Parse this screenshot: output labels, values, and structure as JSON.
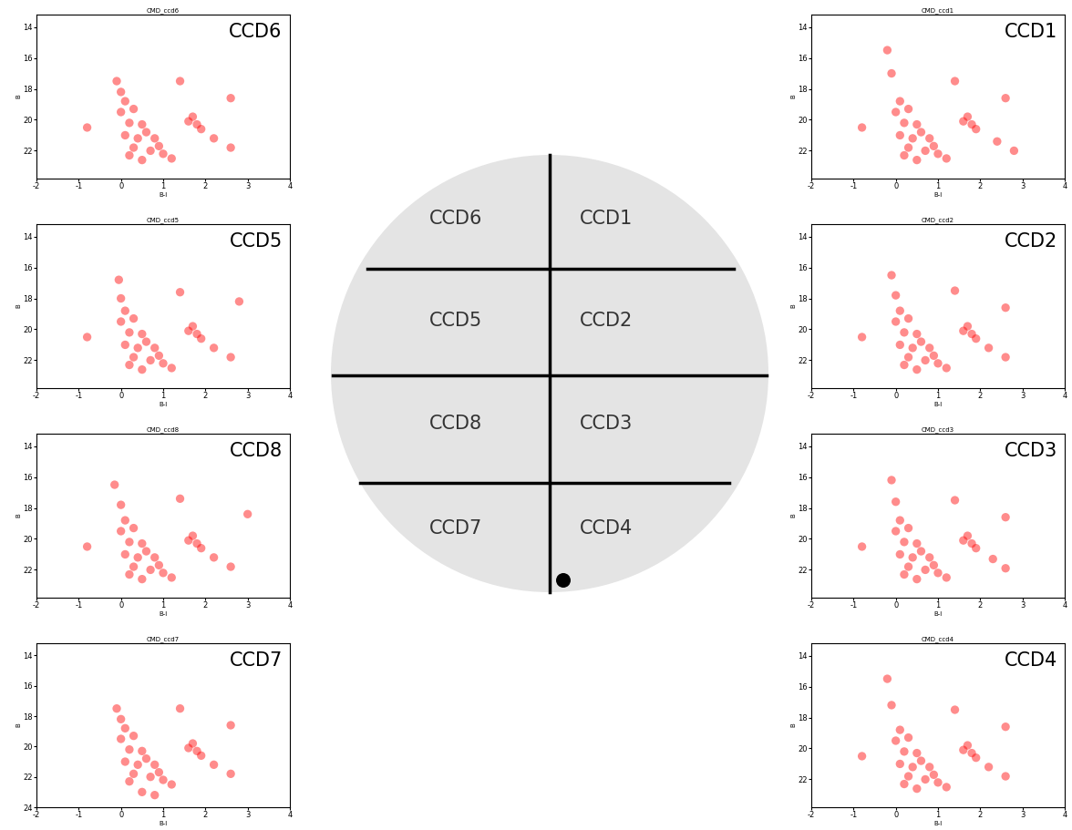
{
  "chart_data": [
    {
      "type": "scatter",
      "title": "CMD_ccd6",
      "annotation": "CCD6",
      "x_label": "B-I",
      "y_label": "B",
      "color": "#ff0000",
      "x": [
        -0.1,
        0,
        0.1,
        0,
        0.3,
        0.2,
        0.5,
        0.1,
        0.4,
        0.8,
        0.3,
        0.7,
        1.0,
        1.2,
        0.5,
        0.9,
        0.6,
        0.2,
        1.6,
        1.8,
        1.7,
        1.9,
        2.2,
        2.6,
        1.4,
        2.6,
        -0.8
      ],
      "values": [
        17.5,
        18.2,
        18.8,
        19.5,
        19.3,
        20.2,
        20.3,
        21.0,
        21.2,
        21.2,
        21.8,
        22.0,
        22.2,
        22.5,
        22.6,
        21.7,
        20.8,
        22.3,
        20.1,
        20.3,
        19.8,
        20.6,
        21.2,
        21.8,
        17.5,
        18.6,
        20.5
      ],
      "xlim": [
        -2,
        4
      ],
      "xticks": [
        -2,
        -1,
        0,
        1,
        2,
        3,
        4
      ],
      "ylim": [
        23.8,
        13.2
      ],
      "yticks": [
        14,
        16,
        18,
        20,
        22
      ]
    },
    {
      "type": "scatter",
      "title": "CMD_ccd5",
      "annotation": "CCD5",
      "x_label": "B-I",
      "y_label": "B",
      "color": "#ff0000",
      "x": [
        -0.05,
        0,
        0.1,
        0,
        0.3,
        0.2,
        0.5,
        0.1,
        0.4,
        0.8,
        0.3,
        0.7,
        1.0,
        1.2,
        0.5,
        0.9,
        0.6,
        0.2,
        1.6,
        1.8,
        1.7,
        1.9,
        2.2,
        2.6,
        1.4,
        2.8,
        -0.8
      ],
      "values": [
        16.8,
        18.0,
        18.8,
        19.5,
        19.3,
        20.2,
        20.3,
        21.0,
        21.2,
        21.2,
        21.8,
        22.0,
        22.2,
        22.5,
        22.6,
        21.7,
        20.8,
        22.3,
        20.1,
        20.3,
        19.8,
        20.6,
        21.2,
        21.8,
        17.6,
        18.2,
        20.5
      ],
      "xlim": [
        -2,
        4
      ],
      "xticks": [
        -2,
        -1,
        0,
        1,
        2,
        3,
        4
      ],
      "ylim": [
        23.8,
        13.2
      ],
      "yticks": [
        14,
        16,
        18,
        20,
        22
      ]
    },
    {
      "type": "scatter",
      "title": "CMD_ccd8",
      "annotation": "CCD8",
      "x_label": "B-I",
      "y_label": "B",
      "color": "#ff0000",
      "x": [
        -0.15,
        0,
        0.1,
        0,
        0.3,
        0.2,
        0.5,
        0.1,
        0.4,
        0.8,
        0.3,
        0.7,
        1.0,
        1.2,
        0.5,
        0.9,
        0.6,
        0.2,
        1.6,
        1.8,
        1.7,
        1.9,
        2.2,
        2.6,
        1.4,
        3.0,
        -0.8
      ],
      "values": [
        16.5,
        17.8,
        18.8,
        19.5,
        19.3,
        20.2,
        20.3,
        21.0,
        21.2,
        21.2,
        21.8,
        22.0,
        22.2,
        22.5,
        22.6,
        21.7,
        20.8,
        22.3,
        20.1,
        20.3,
        19.8,
        20.6,
        21.2,
        21.8,
        17.4,
        18.4,
        20.5
      ],
      "xlim": [
        -2,
        4
      ],
      "xticks": [
        -2,
        -1,
        0,
        1,
        2,
        3,
        4
      ],
      "ylim": [
        23.8,
        13.2
      ],
      "yticks": [
        14,
        16,
        18,
        20,
        22
      ]
    },
    {
      "type": "scatter",
      "title": "CMD_ccd7",
      "annotation": "CCD7",
      "x_label": "B-I",
      "y_label": "B",
      "color": "#ff0000",
      "x": [
        -0.1,
        0,
        0.1,
        0,
        0.3,
        0.2,
        0.5,
        0.1,
        0.4,
        0.8,
        0.3,
        0.7,
        1.0,
        1.2,
        0.5,
        0.9,
        0.6,
        0.2,
        1.6,
        1.8,
        1.7,
        1.9,
        2.2,
        2.6,
        1.4,
        2.6,
        0.8
      ],
      "values": [
        17.5,
        18.2,
        18.8,
        19.5,
        19.3,
        20.2,
        20.3,
        21.0,
        21.2,
        21.2,
        21.8,
        22.0,
        22.2,
        22.5,
        23.0,
        21.7,
        20.8,
        22.3,
        20.1,
        20.3,
        19.8,
        20.6,
        21.2,
        21.8,
        17.5,
        18.6,
        23.2
      ],
      "xlim": [
        -2,
        4
      ],
      "xticks": [
        -2,
        -1,
        0,
        1,
        2,
        3,
        4
      ],
      "ylim": [
        24,
        13.2
      ],
      "yticks": [
        14,
        16,
        18,
        20,
        22,
        24
      ]
    },
    {
      "type": "scatter",
      "title": "CMD_ccd1",
      "annotation": "CCD1",
      "x_label": "B-I",
      "y_label": "B",
      "color": "#ff0000",
      "x": [
        -0.2,
        -0.1,
        0.1,
        0,
        0.3,
        0.2,
        0.5,
        0.1,
        0.4,
        0.8,
        0.3,
        0.7,
        1.0,
        1.2,
        0.5,
        0.9,
        0.6,
        0.2,
        1.6,
        1.8,
        1.7,
        1.9,
        2.4,
        2.8,
        1.4,
        2.6,
        -0.8
      ],
      "values": [
        15.5,
        17.0,
        18.8,
        19.5,
        19.3,
        20.2,
        20.3,
        21.0,
        21.2,
        21.2,
        21.8,
        22.0,
        22.2,
        22.5,
        22.6,
        21.7,
        20.8,
        22.3,
        20.1,
        20.3,
        19.8,
        20.6,
        21.4,
        22.0,
        17.5,
        18.6,
        20.5
      ],
      "xlim": [
        -2,
        4
      ],
      "xticks": [
        -2,
        -1,
        0,
        1,
        2,
        3,
        4
      ],
      "ylim": [
        23.8,
        13.2
      ],
      "yticks": [
        14,
        16,
        18,
        20,
        22
      ]
    },
    {
      "type": "scatter",
      "title": "CMD_ccd2",
      "annotation": "CCD2",
      "x_label": "B-I",
      "y_label": "B",
      "color": "#ff0000",
      "x": [
        -0.1,
        0,
        0.1,
        0,
        0.3,
        0.2,
        0.5,
        0.1,
        0.4,
        0.8,
        0.3,
        0.7,
        1.0,
        1.2,
        0.5,
        0.9,
        0.6,
        0.2,
        1.6,
        1.8,
        1.7,
        1.9,
        2.2,
        2.6,
        1.4,
        2.6,
        -0.8
      ],
      "values": [
        16.5,
        17.8,
        18.8,
        19.5,
        19.3,
        20.2,
        20.3,
        21.0,
        21.2,
        21.2,
        21.8,
        22.0,
        22.2,
        22.5,
        22.6,
        21.7,
        20.8,
        22.3,
        20.1,
        20.3,
        19.8,
        20.6,
        21.2,
        21.8,
        17.5,
        18.6,
        20.5
      ],
      "xlim": [
        -2,
        4
      ],
      "xticks": [
        -2,
        -1,
        0,
        1,
        2,
        3,
        4
      ],
      "ylim": [
        23.8,
        13.2
      ],
      "yticks": [
        14,
        16,
        18,
        20,
        22
      ]
    },
    {
      "type": "scatter",
      "title": "CMD_ccd3",
      "annotation": "CCD3",
      "x_label": "B-I",
      "y_label": "B",
      "color": "#ff0000",
      "x": [
        -0.1,
        0,
        0.1,
        0,
        0.3,
        0.2,
        0.5,
        0.1,
        0.4,
        0.8,
        0.3,
        0.7,
        1.0,
        1.2,
        0.5,
        0.9,
        0.6,
        0.2,
        1.6,
        1.8,
        1.7,
        1.9,
        2.3,
        2.6,
        1.4,
        2.6,
        -0.8
      ],
      "values": [
        16.2,
        17.6,
        18.8,
        19.5,
        19.3,
        20.2,
        20.3,
        21.0,
        21.2,
        21.2,
        21.8,
        22.0,
        22.2,
        22.5,
        22.6,
        21.7,
        20.8,
        22.3,
        20.1,
        20.3,
        19.8,
        20.6,
        21.3,
        21.9,
        17.5,
        18.6,
        20.5
      ],
      "xlim": [
        -2,
        4
      ],
      "xticks": [
        -2,
        -1,
        0,
        1,
        2,
        3,
        4
      ],
      "ylim": [
        23.8,
        13.2
      ],
      "yticks": [
        14,
        16,
        18,
        20,
        22
      ]
    },
    {
      "type": "scatter",
      "title": "CMD_ccd4",
      "annotation": "CCD4",
      "x_label": "B-I",
      "y_label": "B",
      "color": "#ff0000",
      "x": [
        -0.2,
        -0.1,
        0.1,
        0,
        0.3,
        0.2,
        0.5,
        0.1,
        0.4,
        0.8,
        0.3,
        0.7,
        1.0,
        1.2,
        0.5,
        0.9,
        0.6,
        0.2,
        1.6,
        1.8,
        1.7,
        1.9,
        2.2,
        2.6,
        1.4,
        2.6,
        -0.8
      ],
      "values": [
        15.5,
        17.2,
        18.8,
        19.5,
        19.3,
        20.2,
        20.3,
        21.0,
        21.2,
        21.2,
        21.8,
        22.0,
        22.2,
        22.5,
        22.6,
        21.7,
        20.8,
        22.3,
        20.1,
        20.3,
        19.8,
        20.6,
        21.2,
        21.8,
        17.5,
        18.6,
        20.5
      ],
      "xlim": [
        -2,
        4
      ],
      "xticks": [
        -2,
        -1,
        0,
        1,
        2,
        3,
        4
      ],
      "ylim": [
        23.8,
        13.2
      ],
      "yticks": [
        14,
        16,
        18,
        20,
        22
      ]
    }
  ],
  "field_image": {
    "ccd_labels": [
      "CCD6",
      "CCD1",
      "CCD5",
      "CCD2",
      "CCD8",
      "CCD3",
      "CCD7",
      "CCD4"
    ]
  }
}
